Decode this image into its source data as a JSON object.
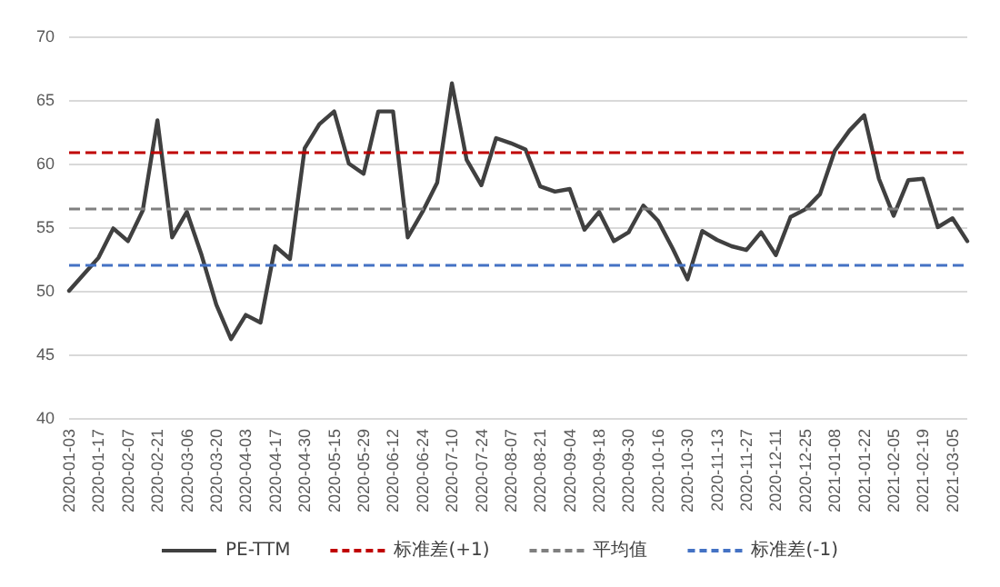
{
  "chart_data": {
    "type": "line",
    "categories": [
      "2020-01-03",
      null,
      "2020-01-17",
      null,
      "2020-02-07",
      null,
      "2020-02-21",
      null,
      "2020-03-06",
      null,
      "2020-03-20",
      null,
      "2020-04-03",
      null,
      "2020-04-17",
      null,
      "2020-04-30",
      null,
      "2020-05-15",
      null,
      "2020-05-29",
      null,
      "2020-06-12",
      null,
      "2020-06-24",
      null,
      "2020-07-10",
      null,
      "2020-07-24",
      null,
      "2020-08-07",
      null,
      "2020-08-21",
      null,
      "2020-09-04",
      null,
      "2020-09-18",
      null,
      "2020-09-30",
      null,
      "2020-10-16",
      null,
      "2020-10-30",
      null,
      "2020-11-13",
      null,
      "2020-11-27",
      null,
      "2020-12-11",
      null,
      "2020-12-25",
      null,
      "2021-01-08",
      null,
      "2021-01-22",
      null,
      "2021-02-05",
      null,
      "2021-02-19",
      null,
      "2021-03-05",
      null
    ],
    "series": [
      {
        "name": "PE-TTM",
        "color": "#404040",
        "values": [
          50.0,
          51.3,
          52.6,
          54.9,
          53.9,
          56.3,
          63.4,
          54.2,
          56.2,
          52.8,
          48.9,
          46.2,
          48.1,
          47.5,
          53.5,
          52.5,
          61.2,
          63.1,
          64.1,
          60.0,
          59.2,
          64.1,
          64.1,
          54.2,
          56.2,
          58.5,
          66.3,
          60.3,
          58.3,
          62.0,
          61.6,
          61.1,
          58.2,
          57.8,
          58.0,
          54.8,
          56.2,
          53.9,
          54.6,
          56.7,
          55.5,
          53.3,
          50.9,
          54.7,
          54.0,
          53.5,
          53.2,
          54.6,
          52.8,
          55.8,
          56.4,
          57.6,
          61.0,
          62.6,
          63.8,
          58.8,
          55.9,
          58.7,
          58.8,
          55.0,
          55.7,
          53.9
        ]
      }
    ],
    "ref_lines": [
      {
        "axis": "y",
        "value": 60.9,
        "label": "标准差(+1)",
        "color": "#c00000",
        "line_style": "dashed"
      },
      {
        "axis": "y",
        "value": 56.5,
        "label": "平均值",
        "color": "#7f7f7f",
        "line_style": "dashed"
      },
      {
        "axis": "y",
        "value": 52.1,
        "label": "标准差(-1)",
        "color": "#4472c4",
        "line_style": "dashed"
      }
    ],
    "ylim": [
      40,
      70
    ],
    "yticks": [
      40,
      45,
      50,
      55,
      60,
      65,
      70
    ],
    "grid": "y",
    "legend": "bottom",
    "marker": "none",
    "line_style": "solid"
  }
}
